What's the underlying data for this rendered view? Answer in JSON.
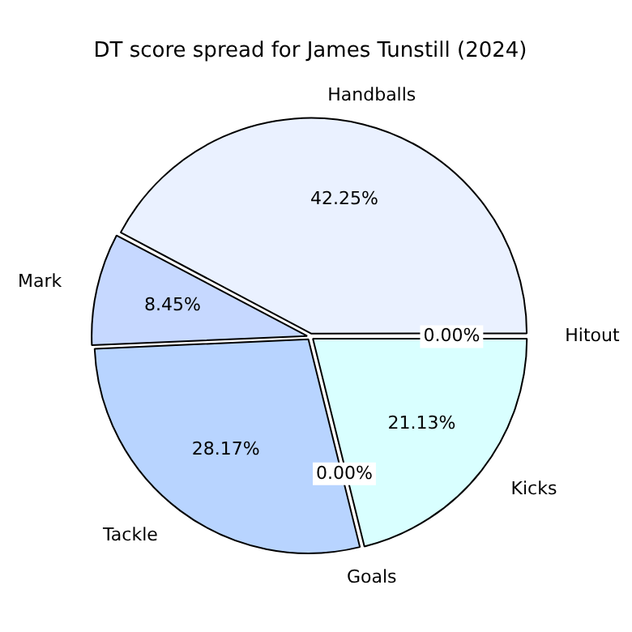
{
  "chart_data": {
    "type": "pie",
    "title": "DT score spread for James Tunstill (2024)",
    "categories": [
      "Hitout",
      "Kicks",
      "Goals",
      "Tackle",
      "Mark",
      "Handballs"
    ],
    "values": [
      0,
      21.13,
      0,
      28.17,
      8.45,
      42.25
    ],
    "value_labels": [
      "0.00%",
      "21.13%",
      "0.00%",
      "28.17%",
      "8.45%",
      "42.25%"
    ],
    "colors": [
      "#e0ecff",
      "#d9ffff",
      "#eef4ff",
      "#b8d4ff",
      "#c6d8ff",
      "#eaf1ff"
    ],
    "legend": false
  }
}
